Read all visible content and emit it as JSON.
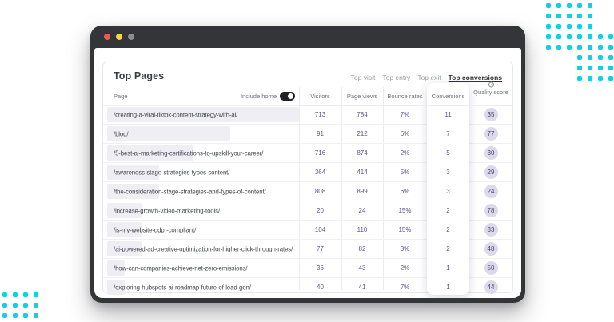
{
  "decor": {
    "dot_color": "#0cd2e6"
  },
  "window": {
    "traffic_lights": [
      {
        "name": "close",
        "color": "#f2574e"
      },
      {
        "name": "minimize",
        "color": "#f7d53d"
      },
      {
        "name": "expand",
        "color": "#8d8d8d"
      }
    ]
  },
  "panel": {
    "title": "Top Pages",
    "tabs": [
      {
        "label": "Top visit",
        "active": false
      },
      {
        "label": "Top entry",
        "active": false
      },
      {
        "label": "Top exit",
        "active": false
      },
      {
        "label": "Top conversions",
        "active": true
      }
    ]
  },
  "table": {
    "include_home": {
      "label": "Include home",
      "on": true
    },
    "headers": {
      "page": "Page",
      "visitors": "Visitors",
      "page_views": "Page views",
      "bounce_rates": "Bounce rates",
      "conversions": "Conversions",
      "quality_score": "Quality score"
    },
    "rows": [
      {
        "page": "/creating-a-viral-tiktok-content-strategy-with-ai/",
        "visitors": "713",
        "page_views": "784",
        "bounce_rate": "7%",
        "conversions": "11",
        "quality_score": "35",
        "bar_pct": 100
      },
      {
        "page": "/blog/",
        "visitors": "91",
        "page_views": "212",
        "bounce_rate": "6%",
        "conversions": "7",
        "quality_score": "77",
        "bar_pct": 64
      },
      {
        "page": "/5-best-ai-marketing-certifications-to-upskill-your-career/",
        "visitors": "716",
        "page_views": "874",
        "bounce_rate": "2%",
        "conversions": "5",
        "quality_score": "30",
        "bar_pct": 45
      },
      {
        "page": "/awareness-stage-strategies-types-content/",
        "visitors": "364",
        "page_views": "414",
        "bounce_rate": "5%",
        "conversions": "3",
        "quality_score": "29",
        "bar_pct": 27
      },
      {
        "page": "/the-consideration-stage-strategies-and-types-of-content/",
        "visitors": "808",
        "page_views": "899",
        "bounce_rate": "6%",
        "conversions": "3",
        "quality_score": "24",
        "bar_pct": 27
      },
      {
        "page": "/increase-growth-video-marketing-tools/",
        "visitors": "20",
        "page_views": "24",
        "bounce_rate": "15%",
        "conversions": "2",
        "quality_score": "78",
        "bar_pct": 18
      },
      {
        "page": "/is-my-website-gdpr-compliant/",
        "visitors": "104",
        "page_views": "110",
        "bounce_rate": "15%",
        "conversions": "2",
        "quality_score": "33",
        "bar_pct": 18
      },
      {
        "page": "/ai-powered-ad-creative-optimization-for-higher-click-through-rates/",
        "visitors": "77",
        "page_views": "82",
        "bounce_rate": "3%",
        "conversions": "2",
        "quality_score": "48",
        "bar_pct": 18
      },
      {
        "page": "/how-can-companies-achieve-net-zero-emissions/",
        "visitors": "36",
        "page_views": "43",
        "bounce_rate": "2%",
        "conversions": "1",
        "quality_score": "50",
        "bar_pct": 9
      },
      {
        "page": "/exploring-hubspots-ai-roadmap-future-of-lead-gen/",
        "visitors": "40",
        "page_views": "41",
        "bounce_rate": "7%",
        "conversions": "1",
        "quality_score": "44",
        "bar_pct": 9
      }
    ]
  }
}
